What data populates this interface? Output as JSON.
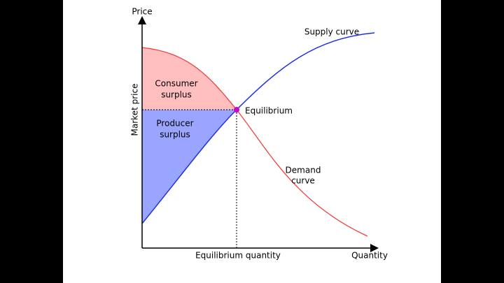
{
  "axes": {
    "y_label": "Price",
    "x_label": "Quantity",
    "y_marker": "Market price",
    "x_marker": "Equilibrium quantity"
  },
  "labels": {
    "supply": "Supply curve",
    "demand": [
      "Demand",
      "curve"
    ],
    "consumer": [
      "Consumer",
      "surplus"
    ],
    "producer": [
      "Producer",
      "surplus"
    ],
    "equilibrium": "Equilibrium"
  }
}
